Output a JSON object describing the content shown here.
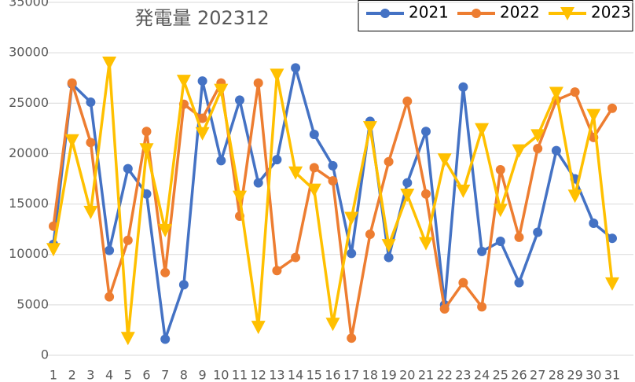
{
  "chart_data": {
    "type": "line",
    "title": "発電量 202312",
    "categories": [
      "1",
      "2",
      "3",
      "4",
      "5",
      "6",
      "7",
      "8",
      "9",
      "10",
      "11",
      "12",
      "13",
      "14",
      "15",
      "16",
      "17",
      "18",
      "19",
      "20",
      "21",
      "22",
      "23",
      "24",
      "25",
      "26",
      "27",
      "28",
      "29",
      "30",
      "31"
    ],
    "series": [
      {
        "name": "2021",
        "color": "#4472c4",
        "marker": "circle",
        "values": [
          11000,
          26900,
          25100,
          10400,
          18500,
          16000,
          1600,
          7000,
          27200,
          19300,
          25300,
          17100,
          19400,
          28500,
          21900,
          18800,
          10100,
          23200,
          9700,
          17100,
          22200,
          5000,
          26600,
          10300,
          11300,
          7200,
          12200,
          20300,
          17500,
          13100,
          11600
        ]
      },
      {
        "name": "2022",
        "color": "#ed7d31",
        "marker": "circle",
        "values": [
          12800,
          27000,
          21100,
          5800,
          11400,
          22200,
          8200,
          24900,
          23500,
          27000,
          13800,
          27000,
          8400,
          9700,
          18600,
          17300,
          1700,
          12000,
          19200,
          25200,
          16000,
          4600,
          7200,
          4800,
          18400,
          11700,
          20500,
          25300,
          26100,
          21600,
          24500
        ]
      },
      {
        "name": "2023",
        "color": "#ffc000",
        "marker": "triangle-down",
        "values": [
          10500,
          21300,
          14200,
          29000,
          1700,
          20400,
          12400,
          27200,
          22000,
          26300,
          15700,
          2800,
          27800,
          18100,
          16400,
          3100,
          13600,
          22600,
          10900,
          15900,
          11100,
          19400,
          16300,
          22400,
          14400,
          20300,
          21800,
          26000,
          15800,
          23800,
          7100
        ]
      }
    ],
    "ylim": [
      0,
      35000
    ],
    "yticks": [
      0,
      5000,
      10000,
      15000,
      20000,
      25000,
      30000,
      35000
    ],
    "grid": true
  }
}
